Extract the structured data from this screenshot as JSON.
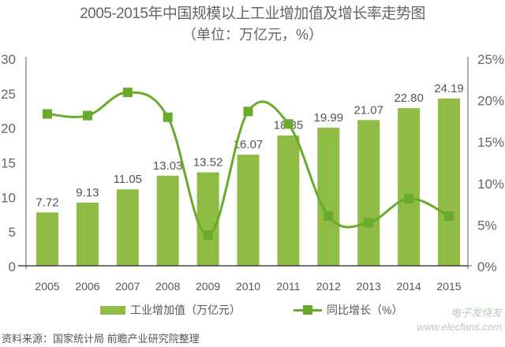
{
  "header": {
    "title": "2005-2015年中国规模以上工业增加值及增长率走势图",
    "subtitle": "（单位：万亿元，%）"
  },
  "legend": {
    "bar_label": "工业增加值（万亿元）",
    "line_label": "同比增长（%）"
  },
  "footer": {
    "source": "资料来源：国家统计局 前瞻产业研究院整理",
    "watermark_line1": "电子发烧友",
    "watermark_line2": "www.elecfans.com"
  },
  "colors": {
    "bar": "#8fbc45",
    "line": "#6aaa2a",
    "axis": "#777777",
    "text": "#555555"
  },
  "chart_data": {
    "type": "bar",
    "title": "2005-2015年中国规模以上工业增加值及增长率走势图",
    "subtitle": "（单位：万亿元，%）",
    "categories": [
      "2005",
      "2006",
      "2007",
      "2008",
      "2009",
      "2010",
      "2011",
      "2012",
      "2013",
      "2014",
      "2015"
    ],
    "series": [
      {
        "name": "工业增加值（万亿元）",
        "type": "bar",
        "axis": "left",
        "values": [
          7.72,
          9.13,
          11.05,
          13.03,
          13.52,
          16.07,
          18.85,
          19.99,
          21.07,
          22.8,
          24.19
        ],
        "labels": [
          "7.72",
          "9.13",
          "11.05",
          "13.03",
          "13.52",
          "16.07",
          "18.85",
          "19.99",
          "21.07",
          "22.80",
          "24.19"
        ]
      },
      {
        "name": "同比增长（%）",
        "type": "line",
        "axis": "right",
        "smooth": true,
        "marker": "square",
        "values": [
          18.3,
          18.1,
          20.9,
          17.9,
          3.7,
          18.6,
          17.1,
          6.0,
          5.2,
          8.1,
          6.0
        ]
      }
    ],
    "xlabel": "",
    "ylabel": "",
    "ylim": [
      0,
      30
    ],
    "y_ticks": [
      "0",
      "5",
      "10",
      "15",
      "20",
      "25",
      "30"
    ],
    "y2lim": [
      0,
      25
    ],
    "y2_ticks": [
      "0%",
      "5%",
      "10%",
      "15%",
      "20%",
      "25%"
    ],
    "grid": false,
    "legend_position": "bottom"
  }
}
